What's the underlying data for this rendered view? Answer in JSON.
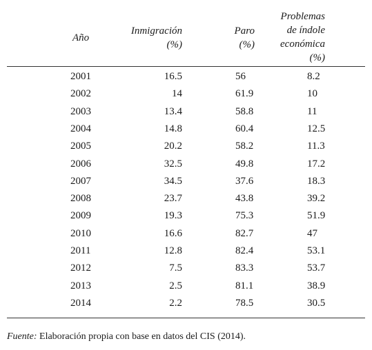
{
  "table": {
    "headers": {
      "year": "Año",
      "immigration": [
        "Inmigración",
        "(%)"
      ],
      "unemployment": [
        "Paro",
        "(%)"
      ],
      "economic": [
        "Problemas",
        "de índole",
        "económica",
        "(%)"
      ]
    },
    "rows": [
      {
        "year": "2001",
        "immigration": "16.5",
        "unemployment": "56",
        "economic": "8.2"
      },
      {
        "year": "2002",
        "immigration": "14",
        "unemployment": "61.9",
        "economic": "10"
      },
      {
        "year": "2003",
        "immigration": "13.4",
        "unemployment": "58.8",
        "economic": "11"
      },
      {
        "year": "2004",
        "immigration": "14.8",
        "unemployment": "60.4",
        "economic": "12.5"
      },
      {
        "year": "2005",
        "immigration": "20.2",
        "unemployment": "58.2",
        "economic": "11.3"
      },
      {
        "year": "2006",
        "immigration": "32.5",
        "unemployment": "49.8",
        "economic": "17.2"
      },
      {
        "year": "2007",
        "immigration": "34.5",
        "unemployment": "37.6",
        "economic": "18.3"
      },
      {
        "year": "2008",
        "immigration": "23.7",
        "unemployment": "43.8",
        "economic": "39.2"
      },
      {
        "year": "2009",
        "immigration": "19.3",
        "unemployment": "75.3",
        "economic": "51.9"
      },
      {
        "year": "2010",
        "immigration": "16.6",
        "unemployment": "82.7",
        "economic": "47"
      },
      {
        "year": "2011",
        "immigration": "12.8",
        "unemployment": "82.4",
        "economic": "53.1"
      },
      {
        "year": "2012",
        "immigration": "7.5",
        "unemployment": "83.3",
        "economic": "53.7"
      },
      {
        "year": "2013",
        "immigration": "2.5",
        "unemployment": "81.1",
        "economic": "38.9"
      },
      {
        "year": "2014",
        "immigration": "2.2",
        "unemployment": "78.5",
        "economic": "30.5"
      }
    ]
  },
  "source": {
    "label": "Fuente:",
    "text_before": " Elaboración propia con base en datos del ",
    "abbr": "CIS",
    "text_after": " (2014)."
  }
}
